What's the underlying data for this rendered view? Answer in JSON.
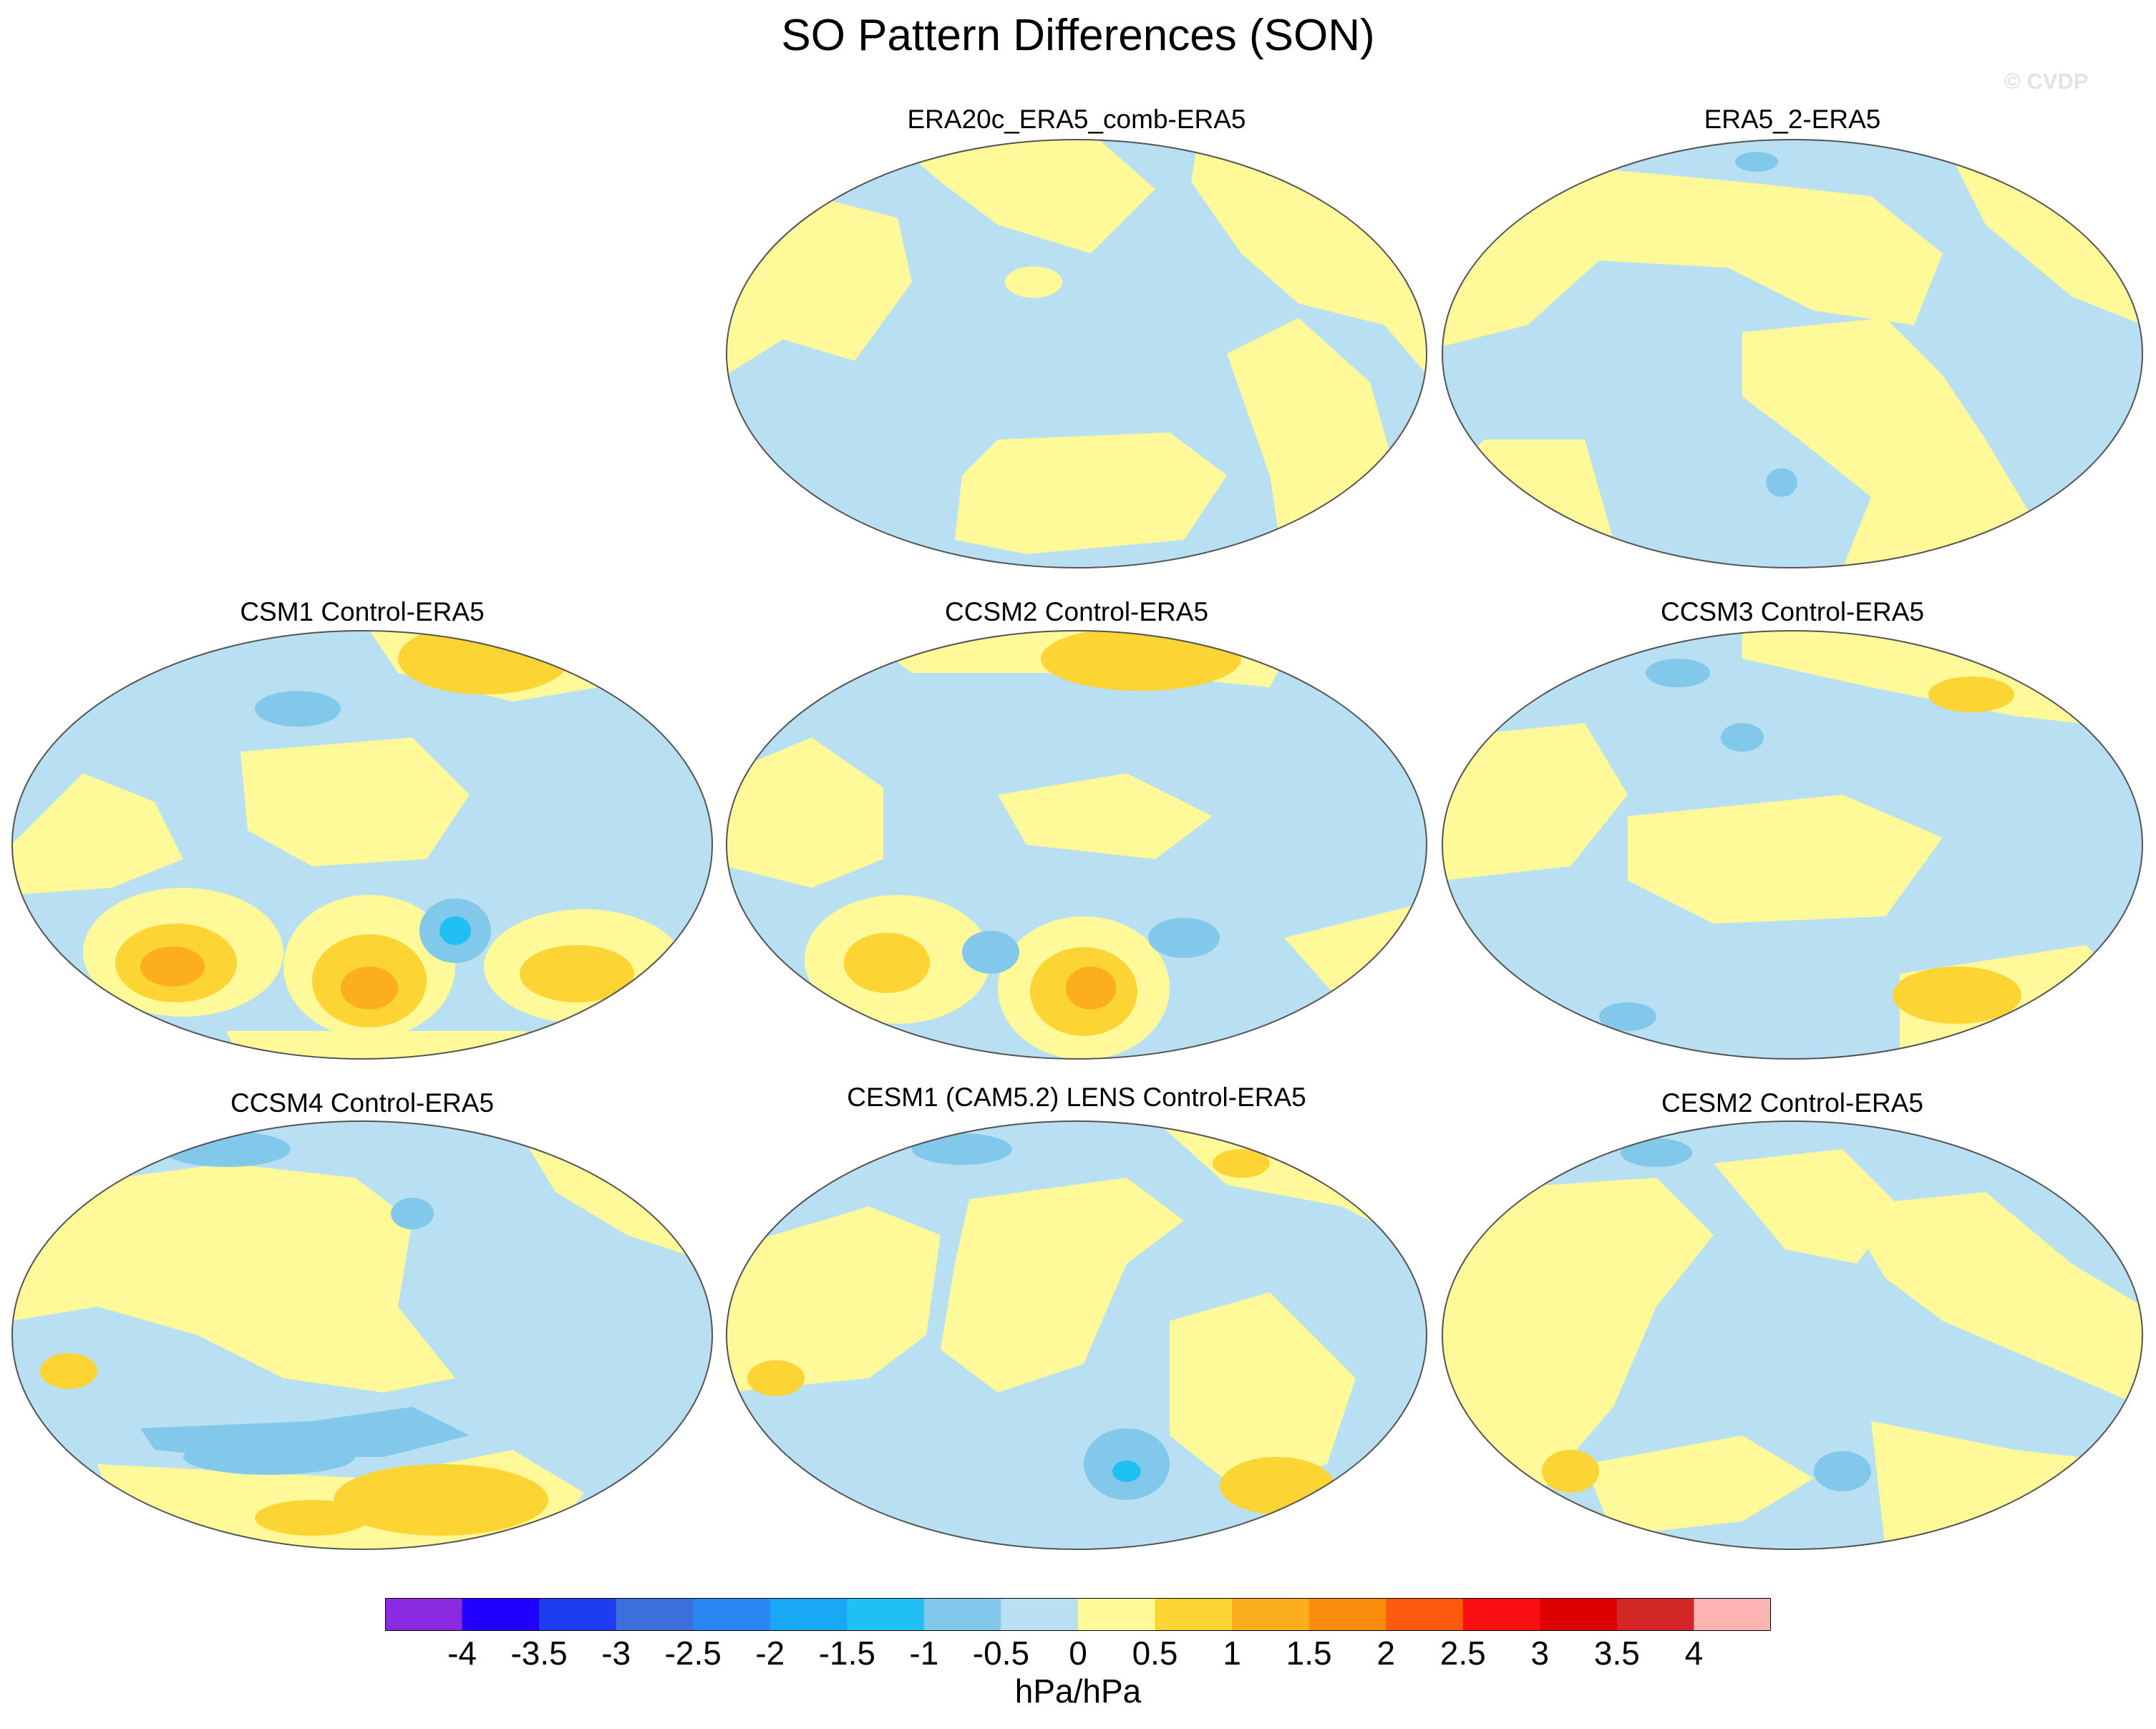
{
  "title": "SO Pattern Differences (SON)",
  "watermark": "© CVDP",
  "panels": [
    {
      "label": "ERA20c_ERA5_comb-ERA5"
    },
    {
      "label": "ERA5_2-ERA5"
    },
    {
      "label": "CSM1 Control-ERA5"
    },
    {
      "label": "CCSM2 Control-ERA5"
    },
    {
      "label": "CCSM3 Control-ERA5"
    },
    {
      "label": "CCSM4 Control-ERA5"
    },
    {
      "label": "CESM1 (CAM5.2) LENS Control-ERA5"
    },
    {
      "label": "CESM2 Control-ERA5"
    }
  ],
  "colorbar": {
    "units": "hPa/hPa",
    "tick_labels": [
      "-4",
      "-3.5",
      "-3",
      "-2.5",
      "-2",
      "-1.5",
      "-1",
      "-0.5",
      "0",
      "0.5",
      "1",
      "1.5",
      "2",
      "2.5",
      "3",
      "3.5",
      "4"
    ],
    "colors": [
      "#8a2be2",
      "#2200ff",
      "#1e3cf0",
      "#3c6edc",
      "#2a86f5",
      "#18a8f5",
      "#20c0f5",
      "#82c8ea",
      "#b8e0f2",
      "#fff99a",
      "#fcd535",
      "#fcae1e",
      "#fc8c0c",
      "#fc5a0c",
      "#fa1010",
      "#dc0000",
      "#d42828",
      "#ffb4b4"
    ]
  },
  "legend_colors": {
    "land_outline": "#555555",
    "frame": "#555555"
  }
}
